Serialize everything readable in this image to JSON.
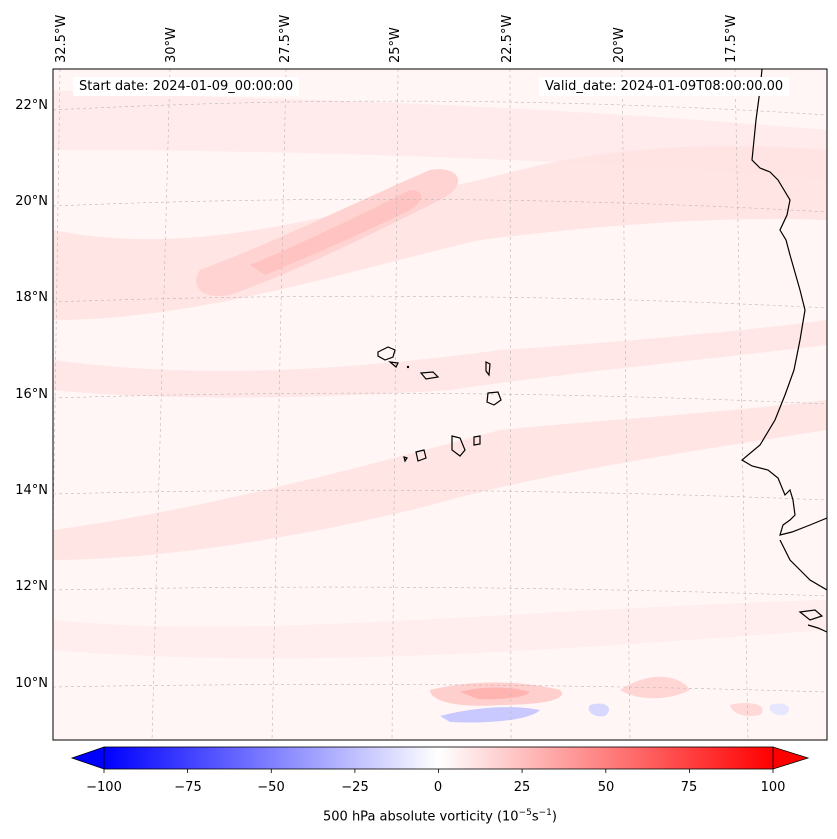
{
  "map": {
    "start_date": "Start date: 2024-01-09_00:00:00",
    "valid_date": "Valid_date: 2024-01-09T08:00:00.00",
    "lon_labels": [
      "32.5°W",
      "30°W",
      "27.5°W",
      "25°W",
      "22.5°W",
      "20°W",
      "17.5°W"
    ],
    "lat_labels": [
      "22°N",
      "20°N",
      "18°N",
      "16°N",
      "14°N",
      "12°N",
      "10°N"
    ],
    "field": "500 hPa absolute vorticity",
    "region_features": [
      "Cape Verde islands",
      "West African coastline (Senegal)"
    ]
  },
  "colorbar": {
    "ticks": [
      "−100",
      "−75",
      "−50",
      "−25",
      "0",
      "25",
      "50",
      "75",
      "100"
    ],
    "label": "500 hPa absolute vorticity (10",
    "label_exp1": "−5",
    "label_mid": "s",
    "label_exp2": "−1",
    "label_end": ")",
    "vmin": -100,
    "vmax": 100,
    "colors": {
      "negative": "#0000ff",
      "zero": "#ffffff",
      "positive": "#ff0000"
    }
  }
}
